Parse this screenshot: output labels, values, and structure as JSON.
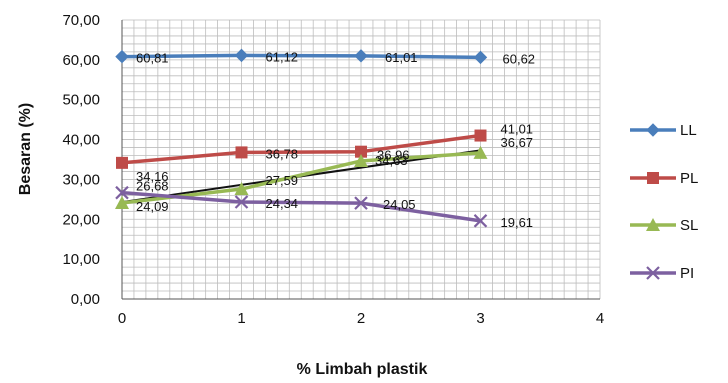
{
  "chart_data": {
    "type": "line",
    "title": "",
    "xlabel": "% Limbah plastik",
    "ylabel": "Besaran (%)",
    "xlim": [
      0,
      4
    ],
    "ylim": [
      0,
      70
    ],
    "x_ticks": [
      "0",
      "1",
      "2",
      "3",
      "4"
    ],
    "y_ticks": [
      "0,00",
      "10,00",
      "20,00",
      "30,00",
      "40,00",
      "50,00",
      "60,00",
      "70,00"
    ],
    "grid": true,
    "legend_position": "right",
    "x": [
      0,
      1,
      2,
      3
    ],
    "series": [
      {
        "name": "LL",
        "color": "#4a7ebb",
        "marker": "diamond",
        "values": [
          60.81,
          61.12,
          61.01,
          60.62
        ],
        "labels": [
          "60,81",
          "61,12",
          "61,01",
          "60,62"
        ]
      },
      {
        "name": "PL",
        "color": "#be4b48",
        "marker": "square",
        "values": [
          34.16,
          36.78,
          36.96,
          41.01
        ],
        "labels": [
          "34,16",
          "36,78",
          "36,96",
          "41,01"
        ]
      },
      {
        "name": "SL",
        "color": "#98b954",
        "marker": "triangle",
        "values": [
          24.09,
          27.59,
          34.63,
          36.67
        ],
        "labels": [
          "24,09",
          "27,59",
          "34,63",
          "36,67"
        ]
      },
      {
        "name": "PI",
        "color": "#7d60a0",
        "marker": "x",
        "values": [
          26.68,
          24.34,
          24.05,
          19.61
        ],
        "labels": [
          "26,68",
          "24,34",
          "24,05",
          "19,61"
        ]
      }
    ],
    "trendline": {
      "color": "#111111",
      "values": [
        24.3,
        37.3
      ]
    }
  }
}
